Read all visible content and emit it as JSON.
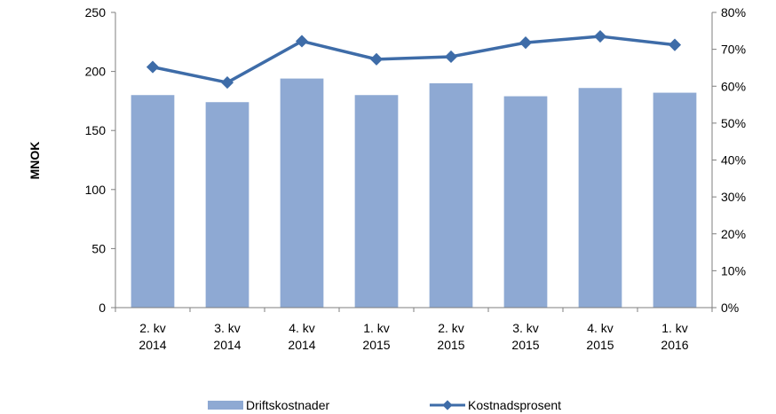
{
  "chart_data": {
    "type": "bar",
    "categories": [
      [
        "2. kv",
        "2014"
      ],
      [
        "3. kv",
        "2014"
      ],
      [
        "4. kv",
        "2014"
      ],
      [
        "1. kv",
        "2015"
      ],
      [
        "2. kv",
        "2015"
      ],
      [
        "3. kv",
        "2015"
      ],
      [
        "4. kv",
        "2015"
      ],
      [
        "1. kv",
        "2016"
      ]
    ],
    "ylabel": "MNOK",
    "ylim": [
      0,
      250
    ],
    "y_ticks": [
      "0",
      "50",
      "100",
      "150",
      "200",
      "250"
    ],
    "y2lim": [
      0,
      0.8
    ],
    "y2_ticks": [
      "0%",
      "10%",
      "20%",
      "30%",
      "40%",
      "50%",
      "60%",
      "70%",
      "80%"
    ],
    "grid": false,
    "legend_position": "bottom",
    "series": [
      {
        "name": "Driftskostnader",
        "type": "bar",
        "axis": "left",
        "color": "#8EA9D3",
        "values": [
          180,
          174,
          194,
          180,
          190,
          179,
          186,
          182
        ]
      },
      {
        "name": "Kostnadsprosent",
        "type": "line",
        "axis": "right",
        "color": "#3E6CA8",
        "values": [
          0.652,
          0.61,
          0.722,
          0.673,
          0.68,
          0.718,
          0.735,
          0.712
        ]
      }
    ]
  }
}
